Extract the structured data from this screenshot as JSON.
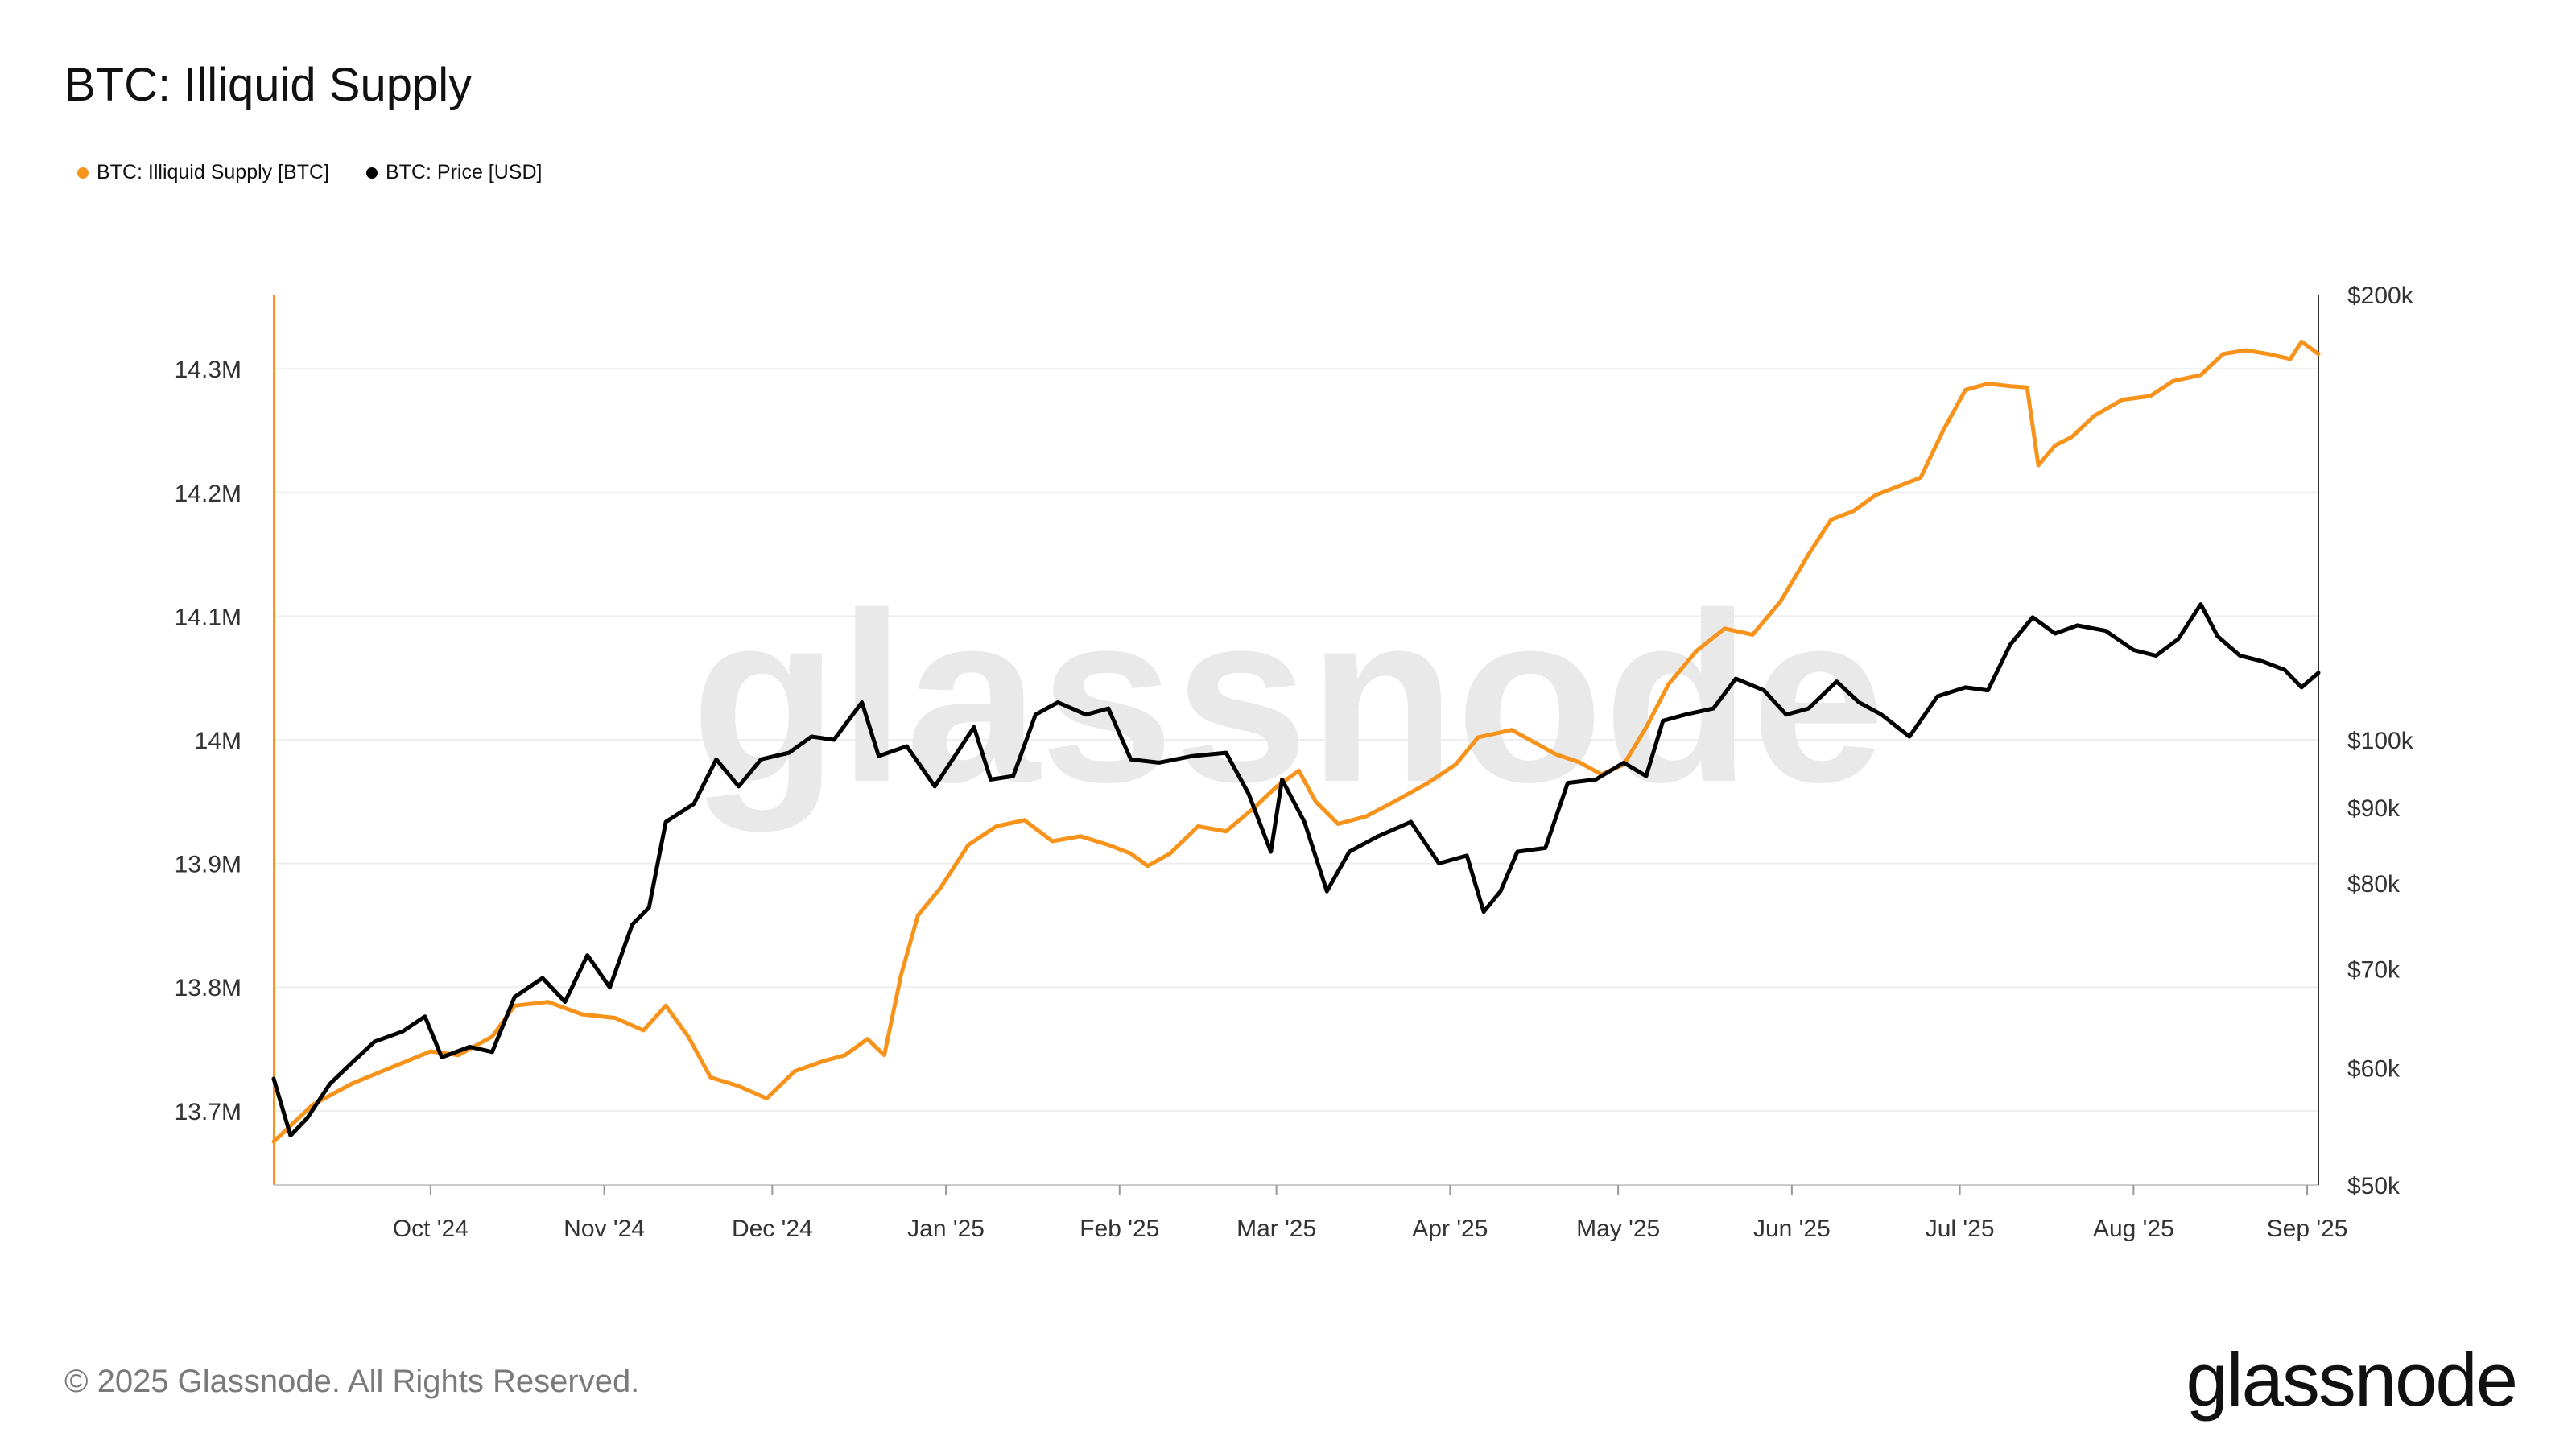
{
  "title": "BTC: Illiquid Supply",
  "legend": {
    "items": [
      {
        "label": "BTC: Illiquid Supply [BTC]",
        "color": "#f7931a"
      },
      {
        "label": "BTC: Price [USD]",
        "color": "#000000"
      }
    ]
  },
  "watermark": "glassnode",
  "footer": {
    "copyright": "© 2025 Glassnode. All Rights Reserved.",
    "brand": "glassnode"
  },
  "chart_data": {
    "type": "line",
    "title": "BTC: Illiquid Supply",
    "x_range": [
      "2024-09-03",
      "2025-09-03"
    ],
    "x_ticks": [
      "Oct '24",
      "Nov '24",
      "Dec '24",
      "Jan '25",
      "Feb '25",
      "Mar '25",
      "Apr '25",
      "May '25",
      "Jun '25",
      "Jul '25",
      "Aug '25",
      "Sep '25"
    ],
    "x_tick_dates": [
      "2024-10-01",
      "2024-11-01",
      "2024-12-01",
      "2025-01-01",
      "2025-02-01",
      "2025-03-01",
      "2025-04-01",
      "2025-05-01",
      "2025-06-01",
      "2025-07-01",
      "2025-08-01",
      "2025-09-01"
    ],
    "y_left": {
      "ticks": [
        13700000,
        13800000,
        13900000,
        14000000,
        14100000,
        14200000,
        14300000
      ],
      "tick_labels": [
        "13.7M",
        "13.8M",
        "13.9M",
        "14M",
        "14.1M",
        "14.2M",
        "14.3M"
      ],
      "range": [
        13640000,
        14360000
      ]
    },
    "y_right": {
      "scale": "log",
      "ticks": [
        50000,
        60000,
        70000,
        80000,
        90000,
        100000,
        200000
      ],
      "tick_labels": [
        "$50k",
        "$60k",
        "$70k",
        "$80k",
        "$90k",
        "$100k",
        "$200k"
      ],
      "range": [
        50000,
        200000
      ]
    },
    "grid": "horizontal",
    "legend_position": "top-left",
    "series": [
      {
        "name": "BTC: Illiquid Supply [BTC]",
        "axis": "left",
        "color": "#f7931a",
        "points": [
          [
            "2024-09-03",
            13675000
          ],
          [
            "2024-09-10",
            13705000
          ],
          [
            "2024-09-17",
            13722000
          ],
          [
            "2024-09-24",
            13735000
          ],
          [
            "2024-10-01",
            13748000
          ],
          [
            "2024-10-06",
            13745000
          ],
          [
            "2024-10-12",
            13760000
          ],
          [
            "2024-10-16",
            13785000
          ],
          [
            "2024-10-22",
            13788000
          ],
          [
            "2024-10-28",
            13778000
          ],
          [
            "2024-11-03",
            13775000
          ],
          [
            "2024-11-08",
            13765000
          ],
          [
            "2024-11-12",
            13785000
          ],
          [
            "2024-11-16",
            13760000
          ],
          [
            "2024-11-20",
            13727000
          ],
          [
            "2024-11-25",
            13720000
          ],
          [
            "2024-11-30",
            13710000
          ],
          [
            "2024-12-05",
            13732000
          ],
          [
            "2024-12-10",
            13740000
          ],
          [
            "2024-12-14",
            13745000
          ],
          [
            "2024-12-18",
            13758000
          ],
          [
            "2024-12-21",
            13745000
          ],
          [
            "2024-12-24",
            13810000
          ],
          [
            "2024-12-27",
            13858000
          ],
          [
            "2024-12-31",
            13880000
          ],
          [
            "2025-01-05",
            13915000
          ],
          [
            "2025-01-10",
            13930000
          ],
          [
            "2025-01-15",
            13935000
          ],
          [
            "2025-01-20",
            13918000
          ],
          [
            "2025-01-25",
            13922000
          ],
          [
            "2025-01-30",
            13915000
          ],
          [
            "2025-02-03",
            13908000
          ],
          [
            "2025-02-06",
            13898000
          ],
          [
            "2025-02-10",
            13908000
          ],
          [
            "2025-02-15",
            13930000
          ],
          [
            "2025-02-20",
            13926000
          ],
          [
            "2025-02-25",
            13945000
          ],
          [
            "2025-03-01",
            13962000
          ],
          [
            "2025-03-05",
            13975000
          ],
          [
            "2025-03-08",
            13950000
          ],
          [
            "2025-03-12",
            13932000
          ],
          [
            "2025-03-17",
            13938000
          ],
          [
            "2025-03-22",
            13950000
          ],
          [
            "2025-03-28",
            13965000
          ],
          [
            "2025-04-02",
            13980000
          ],
          [
            "2025-04-06",
            14002000
          ],
          [
            "2025-04-12",
            14008000
          ],
          [
            "2025-04-16",
            13998000
          ],
          [
            "2025-04-20",
            13988000
          ],
          [
            "2025-04-24",
            13982000
          ],
          [
            "2025-04-28",
            13972000
          ],
          [
            "2025-05-02",
            13980000
          ],
          [
            "2025-05-06",
            14010000
          ],
          [
            "2025-05-10",
            14045000
          ],
          [
            "2025-05-15",
            14072000
          ],
          [
            "2025-05-20",
            14090000
          ],
          [
            "2025-05-25",
            14085000
          ],
          [
            "2025-05-30",
            14112000
          ],
          [
            "2025-06-04",
            14150000
          ],
          [
            "2025-06-08",
            14178000
          ],
          [
            "2025-06-12",
            14185000
          ],
          [
            "2025-06-16",
            14198000
          ],
          [
            "2025-06-20",
            14205000
          ],
          [
            "2025-06-24",
            14212000
          ],
          [
            "2025-06-28",
            14250000
          ],
          [
            "2025-07-02",
            14283000
          ],
          [
            "2025-07-06",
            14288000
          ],
          [
            "2025-07-10",
            14286000
          ],
          [
            "2025-07-13",
            14285000
          ],
          [
            "2025-07-15",
            14222000
          ],
          [
            "2025-07-18",
            14238000
          ],
          [
            "2025-07-21",
            14245000
          ],
          [
            "2025-07-25",
            14262000
          ],
          [
            "2025-07-30",
            14275000
          ],
          [
            "2025-08-04",
            14278000
          ],
          [
            "2025-08-08",
            14290000
          ],
          [
            "2025-08-13",
            14295000
          ],
          [
            "2025-08-17",
            14312000
          ],
          [
            "2025-08-21",
            14315000
          ],
          [
            "2025-08-25",
            14312000
          ],
          [
            "2025-08-29",
            14308000
          ],
          [
            "2025-08-31",
            14322000
          ],
          [
            "2025-09-03",
            14312000
          ]
        ]
      },
      {
        "name": "BTC: Price [USD]",
        "axis": "right",
        "color": "#000000",
        "points": [
          [
            "2024-09-03",
            59000
          ],
          [
            "2024-09-06",
            54000
          ],
          [
            "2024-09-09",
            55500
          ],
          [
            "2024-09-13",
            58500
          ],
          [
            "2024-09-17",
            60500
          ],
          [
            "2024-09-21",
            62500
          ],
          [
            "2024-09-26",
            63500
          ],
          [
            "2024-09-30",
            65000
          ],
          [
            "2024-10-03",
            61000
          ],
          [
            "2024-10-08",
            62000
          ],
          [
            "2024-10-12",
            61500
          ],
          [
            "2024-10-16",
            67000
          ],
          [
            "2024-10-21",
            69000
          ],
          [
            "2024-10-25",
            66500
          ],
          [
            "2024-10-29",
            71500
          ],
          [
            "2024-11-02",
            68000
          ],
          [
            "2024-11-06",
            75000
          ],
          [
            "2024-11-09",
            77000
          ],
          [
            "2024-11-12",
            88000
          ],
          [
            "2024-11-17",
            90500
          ],
          [
            "2024-11-21",
            97000
          ],
          [
            "2024-11-25",
            93000
          ],
          [
            "2024-11-29",
            97000
          ],
          [
            "2024-12-04",
            98000
          ],
          [
            "2024-12-08",
            100500
          ],
          [
            "2024-12-12",
            100000
          ],
          [
            "2024-12-17",
            106000
          ],
          [
            "2024-12-20",
            97500
          ],
          [
            "2024-12-25",
            99000
          ],
          [
            "2024-12-30",
            93000
          ],
          [
            "2025-01-06",
            102000
          ],
          [
            "2025-01-09",
            94000
          ],
          [
            "2025-01-13",
            94500
          ],
          [
            "2025-01-17",
            104000
          ],
          [
            "2025-01-21",
            106000
          ],
          [
            "2025-01-26",
            104000
          ],
          [
            "2025-01-30",
            105000
          ],
          [
            "2025-02-03",
            97000
          ],
          [
            "2025-02-08",
            96500
          ],
          [
            "2025-02-14",
            97500
          ],
          [
            "2025-02-20",
            98000
          ],
          [
            "2025-02-24",
            92000
          ],
          [
            "2025-02-28",
            84000
          ],
          [
            "2025-03-02",
            94000
          ],
          [
            "2025-03-06",
            88000
          ],
          [
            "2025-03-10",
            79000
          ],
          [
            "2025-03-14",
            84000
          ],
          [
            "2025-03-19",
            86000
          ],
          [
            "2025-03-25",
            88000
          ],
          [
            "2025-03-30",
            82500
          ],
          [
            "2025-04-04",
            83500
          ],
          [
            "2025-04-07",
            76500
          ],
          [
            "2025-04-10",
            79000
          ],
          [
            "2025-04-13",
            84000
          ],
          [
            "2025-04-18",
            84500
          ],
          [
            "2025-04-22",
            93500
          ],
          [
            "2025-04-27",
            94000
          ],
          [
            "2025-05-02",
            96500
          ],
          [
            "2025-05-06",
            94500
          ],
          [
            "2025-05-09",
            103000
          ],
          [
            "2025-05-13",
            104000
          ],
          [
            "2025-05-18",
            105000
          ],
          [
            "2025-05-22",
            110000
          ],
          [
            "2025-05-27",
            108000
          ],
          [
            "2025-05-31",
            104000
          ],
          [
            "2025-06-04",
            105000
          ],
          [
            "2025-06-09",
            109500
          ],
          [
            "2025-06-13",
            106000
          ],
          [
            "2025-06-17",
            104000
          ],
          [
            "2025-06-22",
            100500
          ],
          [
            "2025-06-27",
            107000
          ],
          [
            "2025-07-02",
            108500
          ],
          [
            "2025-07-06",
            108000
          ],
          [
            "2025-07-10",
            116000
          ],
          [
            "2025-07-14",
            121000
          ],
          [
            "2025-07-18",
            118000
          ],
          [
            "2025-07-22",
            119500
          ],
          [
            "2025-07-27",
            118500
          ],
          [
            "2025-08-01",
            115000
          ],
          [
            "2025-08-05",
            114000
          ],
          [
            "2025-08-09",
            117000
          ],
          [
            "2025-08-13",
            123500
          ],
          [
            "2025-08-16",
            117500
          ],
          [
            "2025-08-20",
            114000
          ],
          [
            "2025-08-24",
            113000
          ],
          [
            "2025-08-28",
            111500
          ],
          [
            "2025-08-31",
            108500
          ],
          [
            "2025-09-03",
            111000
          ]
        ]
      }
    ]
  }
}
